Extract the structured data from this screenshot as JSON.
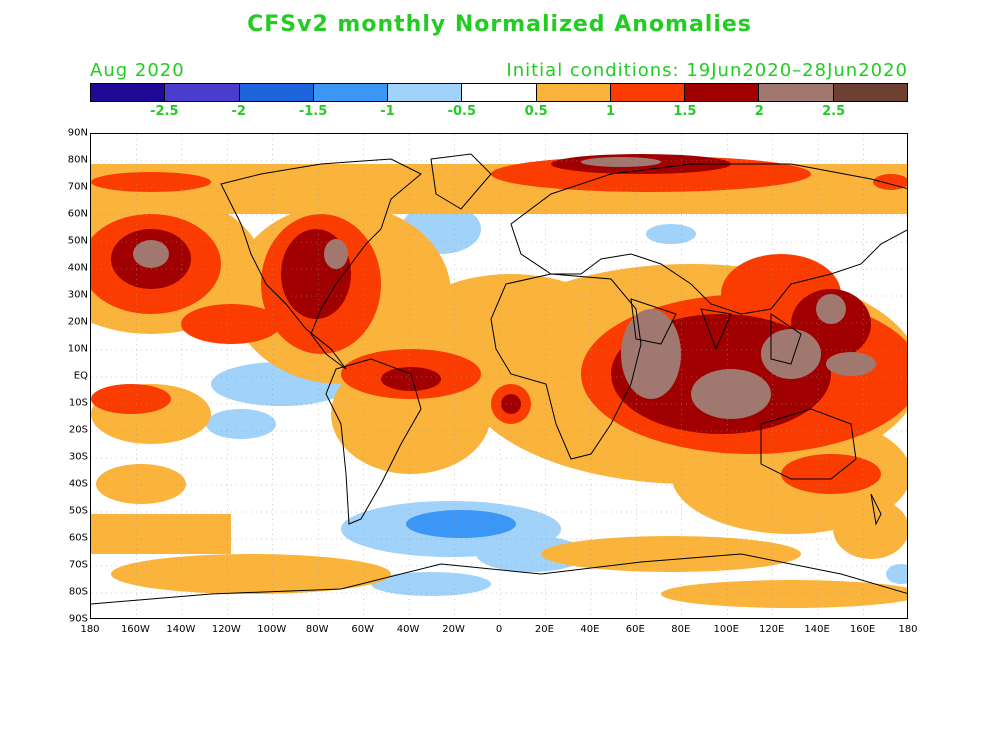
{
  "title": "CFSv2 monthly Normalized Anomalies",
  "subtitle_left": "Aug 2020",
  "subtitle_right": "Initial conditions: 19Jun2020–28Jun2020",
  "text_color": "#22cc22",
  "colorbar": {
    "colors": [
      "#1e0a96",
      "#4a3ccd",
      "#1e64dc",
      "#3c96f5",
      "#a0d2fa",
      "#ffffff",
      "#fab43c",
      "#fa3c00",
      "#a00000",
      "#a07870",
      "#6e4032"
    ],
    "labels": [
      "-2.5",
      "-2",
      "-1.5",
      "-1",
      "-0.5",
      "0.5",
      "1",
      "1.5",
      "2",
      "2.5"
    ]
  },
  "axes": {
    "lat_labels": [
      "90N",
      "80N",
      "70N",
      "60N",
      "50N",
      "40N",
      "30N",
      "20N",
      "10N",
      "EQ",
      "10S",
      "20S",
      "30S",
      "40S",
      "50S",
      "60S",
      "70S",
      "80S",
      "90S"
    ],
    "lon_labels": [
      "180",
      "160W",
      "140W",
      "120W",
      "100W",
      "80W",
      "60W",
      "40W",
      "20W",
      "0",
      "20E",
      "40E",
      "60E",
      "80E",
      "100E",
      "120E",
      "140E",
      "160E",
      "180"
    ]
  }
}
